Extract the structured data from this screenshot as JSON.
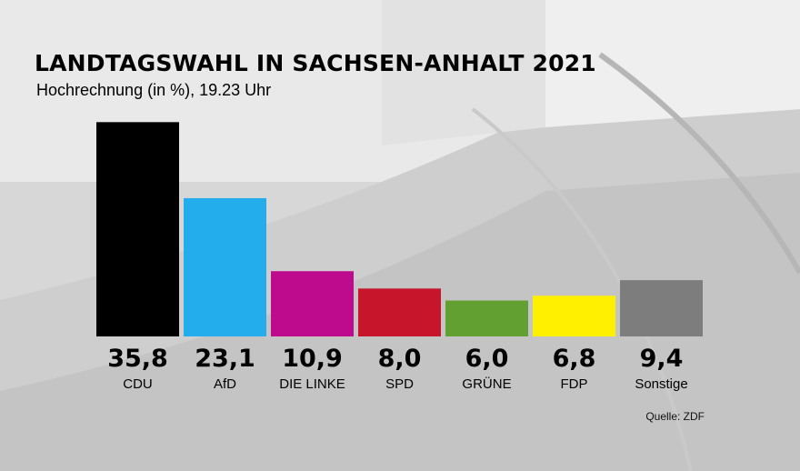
{
  "header": {
    "title": "LANDTAGSWAHL IN SACHSEN-ANHALT 2021",
    "subtitle": "Hochrechnung (in %), 19.23 Uhr"
  },
  "source": "Quelle: ZDF",
  "chart_data": {
    "type": "bar",
    "title": "LANDTAGSWAHL IN SACHSEN-ANHALT 2021",
    "subtitle": "Hochrechnung (in %), 19.23 Uhr",
    "categories": [
      "CDU",
      "AfD",
      "DIE LINKE",
      "SPD",
      "GRÜNE",
      "FDP",
      "Sonstige"
    ],
    "values": [
      35.8,
      23.1,
      10.9,
      8.0,
      6.0,
      6.8,
      9.4
    ],
    "value_labels": [
      "35,8",
      "23,1",
      "10,9",
      "8,0",
      "6,0",
      "6,8",
      "9,4"
    ],
    "colors": [
      "#000000",
      "#24aded",
      "#be0a8c",
      "#c7162c",
      "#63a032",
      "#fff000",
      "#7d7d7d"
    ],
    "xlabel": "",
    "ylabel": "",
    "ylim": [
      0,
      36
    ],
    "grid": false,
    "legend": "none"
  }
}
